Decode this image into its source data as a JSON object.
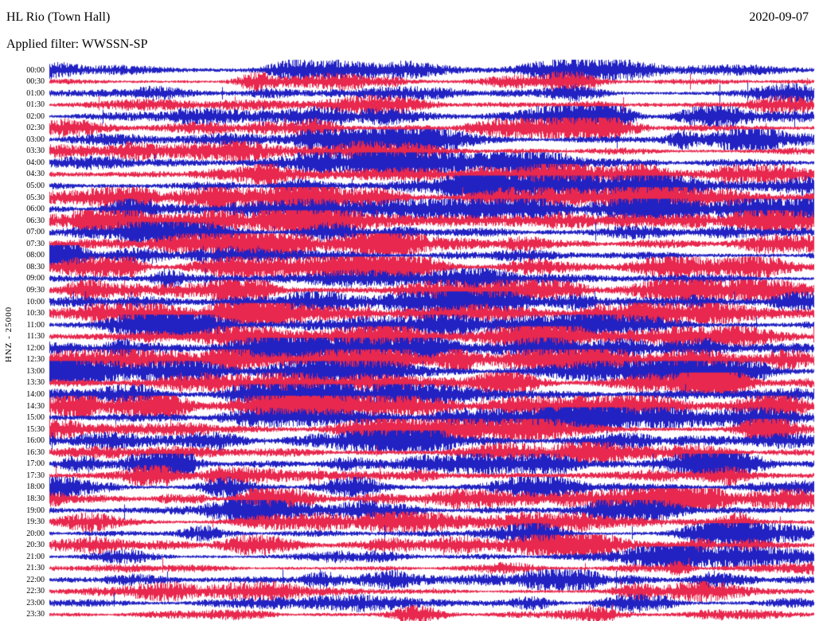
{
  "header": {
    "station": "HL Rio (Town Hall)",
    "date": "2020-09-07",
    "filter": "Applied filter: WWSSN-SP"
  },
  "axis": {
    "channel_label": "HNZ - 25000"
  },
  "chart_data": {
    "type": "line",
    "subtype": "helicorder-seismogram",
    "title": "HL Rio (Town Hall)",
    "date": "2020-09-07",
    "filter": "WWSSN-SP",
    "channel": "HNZ",
    "scale": 25000,
    "row_interval_minutes": 30,
    "rows_count": 48,
    "legend": "none",
    "grid": "off",
    "row_times": [
      "00:00",
      "00:30",
      "01:00",
      "01:30",
      "02:00",
      "02:30",
      "03:00",
      "03:30",
      "04:00",
      "04:30",
      "05:00",
      "05:30",
      "06:00",
      "06:30",
      "07:00",
      "07:30",
      "08:00",
      "08:30",
      "09:00",
      "09:30",
      "10:00",
      "10:30",
      "11:00",
      "11:30",
      "12:00",
      "12:30",
      "13:00",
      "13:30",
      "14:00",
      "14:30",
      "15:00",
      "15:30",
      "16:00",
      "16:30",
      "17:00",
      "17:30",
      "18:00",
      "18:30",
      "19:00",
      "19:30",
      "20:00",
      "20:30",
      "21:00",
      "21:30",
      "22:00",
      "22:30",
      "23:00",
      "23:30"
    ],
    "trace_colors": {
      "even_rows": "#2222c3",
      "odd_rows": "#e8284e"
    },
    "row_activity": [
      1.0,
      1.0,
      1.05,
      1.05,
      1.15,
      1.15,
      1.25,
      1.25,
      1.45,
      1.45,
      1.55,
      1.55,
      1.6,
      1.6,
      1.5,
      1.5,
      1.4,
      1.4,
      1.5,
      1.5,
      1.65,
      1.65,
      1.75,
      1.75,
      1.8,
      1.8,
      1.7,
      1.7,
      1.65,
      1.6,
      1.6,
      1.6,
      1.55,
      1.5,
      1.5,
      1.45,
      1.4,
      1.35,
      1.3,
      1.3,
      1.15,
      1.1,
      1.0,
      0.9,
      0.8,
      0.8,
      0.8,
      0.85
    ],
    "noise_seed": 20200907
  }
}
